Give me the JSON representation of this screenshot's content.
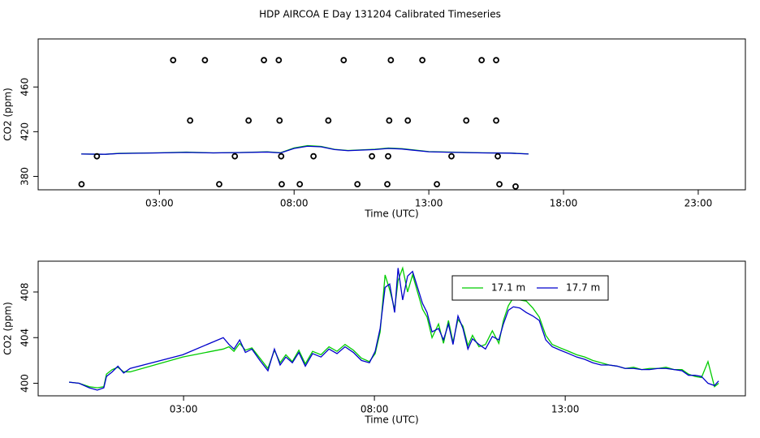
{
  "chart_data": [
    {
      "type": "line",
      "title": "HDP AIRCOA E  Day 131204  Calibrated Timeseries",
      "x_label": "Time (UTC)",
      "y_label": "CO2 (ppm)",
      "xlim": [
        -1.5,
        24.75
      ],
      "ylim": [
        368,
        503
      ],
      "xticks": [
        {
          "value": 3,
          "label": "03:00"
        },
        {
          "value": 8,
          "label": "08:00"
        },
        {
          "value": 13,
          "label": "13:00"
        },
        {
          "value": 18,
          "label": "18:00"
        },
        {
          "value": 23,
          "label": "23:00"
        }
      ],
      "yticks": [
        380,
        420,
        460
      ],
      "x": [
        0.1,
        1,
        1.5,
        3,
        4,
        5,
        6,
        7,
        7.5,
        8,
        8.5,
        9,
        9.5,
        10,
        11,
        11.5,
        12,
        13,
        14,
        15,
        16,
        16.7
      ],
      "series": [
        {
          "color": "#00cc00",
          "values": [
            400,
            399.8,
            400.6,
            401.1,
            401.7,
            401,
            401.4,
            402,
            401.2,
            405.5,
            407.5,
            406.8,
            404.2,
            403.2,
            404.3,
            405.4,
            404.8,
            402.2,
            401.6,
            401.1,
            400.9,
            400.1
          ]
        },
        {
          "color": "#0000cc",
          "values": [
            400,
            399.8,
            400.5,
            401,
            401.5,
            401,
            401.3,
            401.8,
            401,
            405,
            407,
            406.5,
            404,
            403,
            404,
            405,
            404.5,
            402,
            401.5,
            401,
            400.8,
            400
          ]
        }
      ],
      "points": {
        "color": "#000000",
        "x": [
          3.51,
          4.69,
          6.88,
          7.43,
          9.84,
          11.59,
          12.76,
          14.96,
          15.5,
          4.14,
          6.31,
          7.46,
          9.27,
          11.53,
          12.22,
          14.39,
          15.5,
          0.68,
          5.8,
          7.52,
          8.72,
          10.89,
          11.49,
          13.84,
          15.56,
          0.11,
          5.22,
          7.54,
          8.21,
          10.35,
          11.46,
          13.3,
          15.62,
          16.22
        ],
        "values": [
          484,
          484,
          484,
          484,
          484,
          484,
          484,
          484,
          484,
          430,
          430,
          430,
          430,
          430,
          430,
          430,
          430,
          398,
          398,
          398,
          398,
          398,
          398,
          398,
          398,
          373,
          373,
          373,
          373,
          373,
          373,
          373,
          373,
          371
        ]
      }
    },
    {
      "type": "line",
      "x_label": "Time (UTC)",
      "y_label": "CO2 (ppm)",
      "xlim": [
        -0.81,
        17.72
      ],
      "ylim": [
        398.9,
        410.7
      ],
      "xticks": [
        {
          "value": 3,
          "label": "03:00"
        },
        {
          "value": 8,
          "label": "08:00"
        },
        {
          "value": 13,
          "label": "13:00"
        }
      ],
      "yticks": [
        400,
        404,
        408
      ],
      "legend": "top-right",
      "x": [
        0,
        0.26,
        0.53,
        0.74,
        0.91,
        0.98,
        1.13,
        1.28,
        1.43,
        1.6,
        2.98,
        4.04,
        4.19,
        4.32,
        4.47,
        4.62,
        4.79,
        5.0,
        5.21,
        5.38,
        5.53,
        5.68,
        5.85,
        6.02,
        6.19,
        6.38,
        6.6,
        6.81,
        7.02,
        7.23,
        7.45,
        7.66,
        7.87,
        8.02,
        8.15,
        8.28,
        8.4,
        8.53,
        8.62,
        8.74,
        8.87,
        9.0,
        9.13,
        9.26,
        9.38,
        9.51,
        9.68,
        9.81,
        9.94,
        10.06,
        10.19,
        10.32,
        10.45,
        10.57,
        10.74,
        10.91,
        11.09,
        11.26,
        11.38,
        11.51,
        11.64,
        11.81,
        11.98,
        12.15,
        12.32,
        12.49,
        12.66,
        12.87,
        13.09,
        13.3,
        13.51,
        13.72,
        13.94,
        14.15,
        14.36,
        14.57,
        14.79,
        15.0,
        15.21,
        15.43,
        15.64,
        15.85,
        16.06,
        16.23,
        16.4,
        16.57,
        16.74,
        16.91,
        17.02
      ],
      "series": [
        {
          "name": "17.1 m",
          "color": "#00cc00",
          "values": [
            400.1,
            400,
            399.7,
            399.6,
            399.7,
            400.8,
            401.2,
            401.4,
            401.0,
            401.0,
            402.3,
            403.0,
            403.2,
            402.8,
            403.5,
            402.9,
            403.1,
            402.2,
            401.3,
            402.9,
            401.8,
            402.5,
            401.9,
            402.9,
            401.7,
            402.8,
            402.5,
            403.2,
            402.8,
            403.4,
            402.9,
            402.2,
            401.9,
            402.6,
            404.5,
            409.5,
            408.2,
            406.5,
            409.0,
            410.1,
            408.0,
            409.5,
            408.0,
            406.5,
            405.8,
            404.0,
            405.2,
            403.5,
            405.5,
            403.6,
            405.6,
            405.0,
            403.3,
            404.2,
            403.2,
            403.4,
            404.6,
            403.5,
            405.5,
            406.8,
            407.5,
            407.3,
            407.2,
            406.6,
            405.8,
            404.2,
            403.4,
            403.1,
            402.8,
            402.5,
            402.3,
            402.0,
            401.8,
            401.6,
            401.5,
            401.3,
            401.4,
            401.2,
            401.3,
            401.3,
            401.4,
            401.2,
            401.2,
            400.8,
            400.6,
            400.5,
            401.9,
            399.7,
            400.0
          ]
        },
        {
          "name": "17.7 m",
          "color": "#0000cc",
          "values": [
            400.1,
            400,
            399.6,
            399.4,
            399.6,
            400.6,
            401.0,
            401.5,
            400.9,
            401.3,
            402.5,
            404.0,
            403.4,
            403.0,
            403.8,
            402.7,
            403.0,
            402.0,
            401.1,
            403.0,
            401.6,
            402.3,
            401.8,
            402.7,
            401.5,
            402.6,
            402.3,
            403.0,
            402.6,
            403.2,
            402.7,
            402.0,
            401.8,
            402.8,
            404.8,
            408.4,
            408.7,
            406.2,
            410.1,
            407.3,
            409.4,
            409.8,
            408.4,
            407.0,
            406.2,
            404.5,
            404.8,
            403.8,
            405.2,
            403.4,
            405.9,
            404.8,
            403.0,
            403.9,
            403.4,
            403.0,
            404.1,
            403.8,
            405.2,
            406.4,
            406.7,
            406.6,
            406.2,
            405.9,
            405.5,
            403.8,
            403.2,
            402.9,
            402.6,
            402.3,
            402.1,
            401.8,
            401.6,
            401.6,
            401.5,
            401.3,
            401.3,
            401.2,
            401.2,
            401.3,
            401.3,
            401.2,
            401.1,
            400.7,
            400.7,
            400.6,
            400.0,
            399.8,
            400.2
          ]
        }
      ]
    }
  ]
}
